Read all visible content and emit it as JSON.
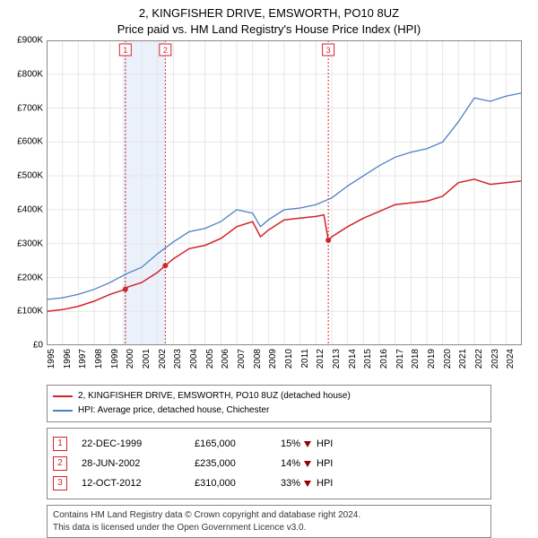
{
  "title_line1": "2, KINGFISHER DRIVE, EMSWORTH, PO10 8UZ",
  "title_line2": "Price paid vs. HM Land Registry's House Price Index (HPI)",
  "chart": {
    "type": "line",
    "background_color": "#ffffff",
    "grid_color": "#e6e6e6",
    "tick_fontsize": 10,
    "x_start_year": 1995,
    "x_end_year": 2025,
    "ylim": [
      0,
      900000
    ],
    "ytick_step": 100000,
    "yticks": [
      "£0",
      "£100K",
      "£200K",
      "£300K",
      "£400K",
      "£500K",
      "£600K",
      "£700K",
      "£800K",
      "£900K"
    ],
    "xticks": [
      1995,
      1996,
      1997,
      1998,
      1999,
      2000,
      2001,
      2002,
      2003,
      2004,
      2005,
      2006,
      2007,
      2008,
      2009,
      2010,
      2011,
      2012,
      2013,
      2014,
      2015,
      2016,
      2017,
      2018,
      2019,
      2020,
      2021,
      2022,
      2023,
      2024
    ],
    "shaded_band": {
      "from_year": 1999.8,
      "to_year": 2002.5,
      "color": "#eaf1fb"
    },
    "series": [
      {
        "name": "HPI: Average price, detached house, Chichester",
        "color": "#4f7fc5",
        "line_width": 1.3,
        "points": [
          [
            1995,
            135000
          ],
          [
            1996,
            140000
          ],
          [
            1997,
            150000
          ],
          [
            1998,
            165000
          ],
          [
            1999,
            185000
          ],
          [
            2000,
            210000
          ],
          [
            2001,
            230000
          ],
          [
            2002,
            270000
          ],
          [
            2003,
            305000
          ],
          [
            2004,
            335000
          ],
          [
            2005,
            345000
          ],
          [
            2006,
            365000
          ],
          [
            2007,
            400000
          ],
          [
            2008,
            390000
          ],
          [
            2008.5,
            350000
          ],
          [
            2009,
            370000
          ],
          [
            2010,
            400000
          ],
          [
            2011,
            405000
          ],
          [
            2012,
            415000
          ],
          [
            2013,
            435000
          ],
          [
            2014,
            470000
          ],
          [
            2015,
            500000
          ],
          [
            2016,
            530000
          ],
          [
            2017,
            555000
          ],
          [
            2018,
            570000
          ],
          [
            2019,
            580000
          ],
          [
            2020,
            600000
          ],
          [
            2021,
            660000
          ],
          [
            2022,
            730000
          ],
          [
            2023,
            720000
          ],
          [
            2024,
            735000
          ],
          [
            2025,
            745000
          ]
        ]
      },
      {
        "name": "2, KINGFISHER DRIVE, EMSWORTH, PO10 8UZ (detached house)",
        "color": "#d2232a",
        "line_width": 1.5,
        "points": [
          [
            1995,
            100000
          ],
          [
            1996,
            105000
          ],
          [
            1997,
            115000
          ],
          [
            1998,
            130000
          ],
          [
            1999,
            150000
          ],
          [
            1999.97,
            165000
          ],
          [
            2000,
            170000
          ],
          [
            2001,
            185000
          ],
          [
            2002,
            215000
          ],
          [
            2002.49,
            235000
          ],
          [
            2003,
            255000
          ],
          [
            2004,
            285000
          ],
          [
            2005,
            295000
          ],
          [
            2006,
            315000
          ],
          [
            2007,
            350000
          ],
          [
            2008,
            365000
          ],
          [
            2008.5,
            320000
          ],
          [
            2009,
            340000
          ],
          [
            2010,
            370000
          ],
          [
            2011,
            375000
          ],
          [
            2012,
            380000
          ],
          [
            2012.5,
            385000
          ],
          [
            2012.78,
            310000
          ],
          [
            2013,
            320000
          ],
          [
            2014,
            350000
          ],
          [
            2015,
            375000
          ],
          [
            2016,
            395000
          ],
          [
            2017,
            415000
          ],
          [
            2018,
            420000
          ],
          [
            2019,
            425000
          ],
          [
            2020,
            440000
          ],
          [
            2021,
            480000
          ],
          [
            2022,
            490000
          ],
          [
            2023,
            475000
          ],
          [
            2024,
            480000
          ],
          [
            2025,
            485000
          ]
        ]
      }
    ],
    "event_markers": [
      {
        "n": "1",
        "year": 1999.97,
        "color": "#d2232a",
        "vline_color": "#d2232a",
        "point_y": 165000
      },
      {
        "n": "2",
        "year": 2002.49,
        "color": "#d2232a",
        "vline_color": "#d2232a",
        "point_y": 235000
      },
      {
        "n": "3",
        "year": 2012.78,
        "color": "#d2232a",
        "vline_color": "#d2232a",
        "point_y": 310000
      }
    ]
  },
  "legend": [
    {
      "color": "#d2232a",
      "label": "2, KINGFISHER DRIVE, EMSWORTH, PO10 8UZ (detached house)"
    },
    {
      "color": "#4f7fc5",
      "label": "HPI: Average price, detached house, Chichester"
    }
  ],
  "events": [
    {
      "n": "1",
      "color": "#d2232a",
      "date": "22-DEC-1999",
      "price": "£165,000",
      "diff_pct": "15%",
      "diff_dir": "down",
      "diff_suffix": "HPI"
    },
    {
      "n": "2",
      "color": "#d2232a",
      "date": "28-JUN-2002",
      "price": "£235,000",
      "diff_pct": "14%",
      "diff_dir": "down",
      "diff_suffix": "HPI"
    },
    {
      "n": "3",
      "color": "#d2232a",
      "date": "12-OCT-2012",
      "price": "£310,000",
      "diff_pct": "33%",
      "diff_dir": "down",
      "diff_suffix": "HPI"
    }
  ],
  "licence_line1": "Contains HM Land Registry data © Crown copyright and database right 2024.",
  "licence_line2": "This data is licensed under the Open Government Licence v3.0."
}
